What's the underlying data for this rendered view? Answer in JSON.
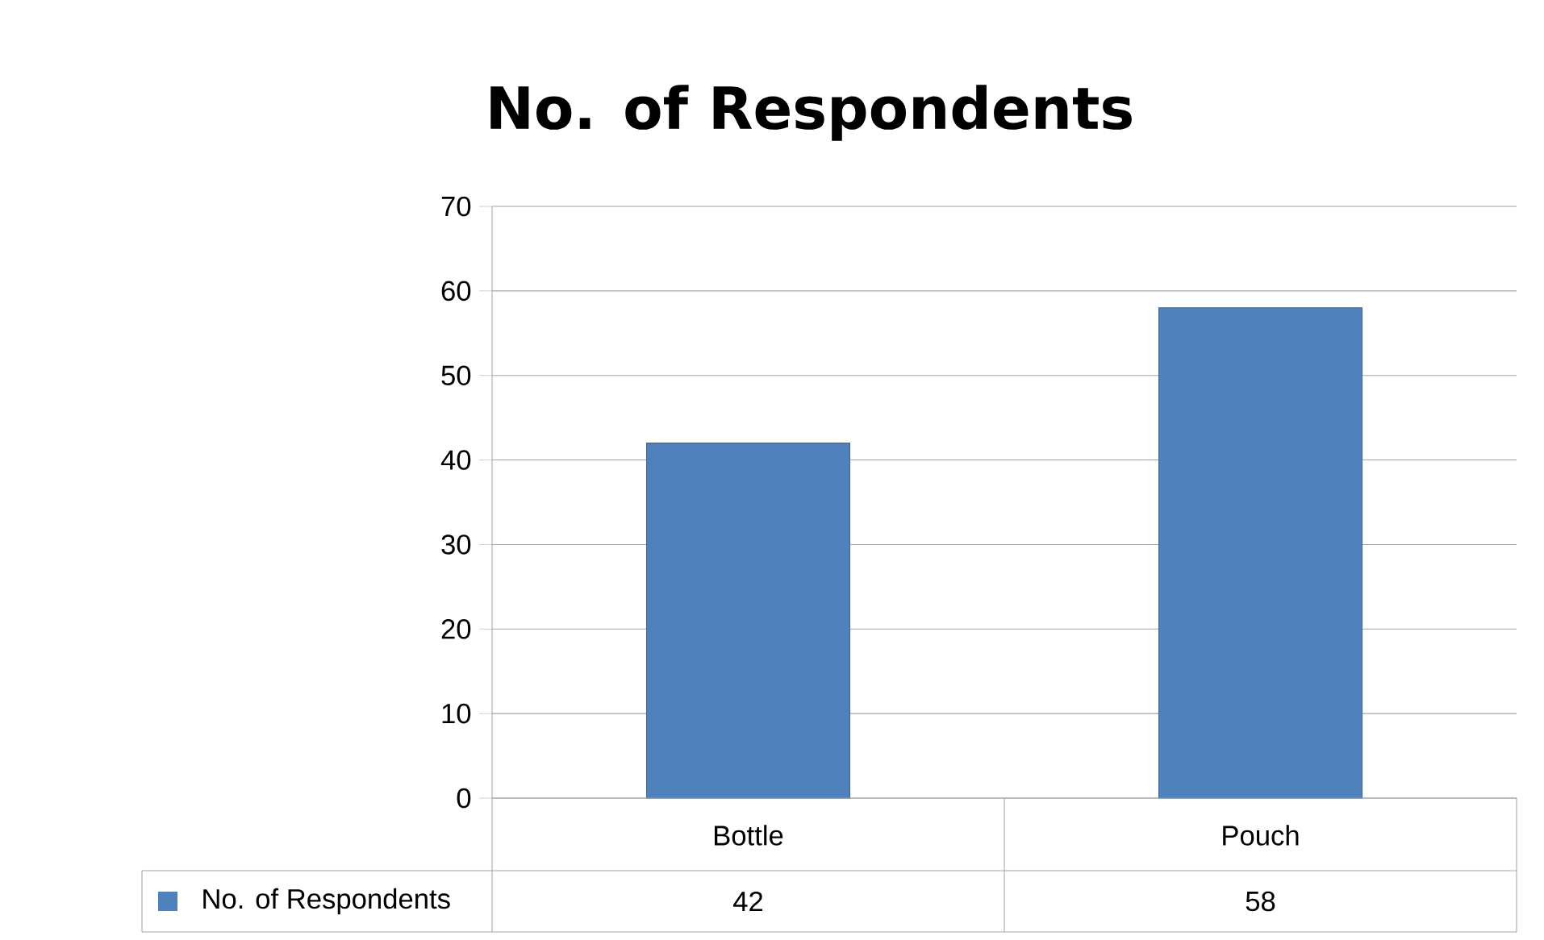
{
  "chart_data": {
    "type": "bar",
    "title": "No. of Respondents",
    "categories": [
      "Bottle",
      "Pouch"
    ],
    "series": [
      {
        "name": "No. of Respondents",
        "color": "#4f81bd",
        "values": [
          42,
          58
        ]
      }
    ],
    "ylim": [
      0,
      70
    ],
    "yticks": [
      0,
      10,
      20,
      30,
      40,
      50,
      60,
      70
    ],
    "grid": "y",
    "legend": "bottom",
    "data_labels": true
  }
}
